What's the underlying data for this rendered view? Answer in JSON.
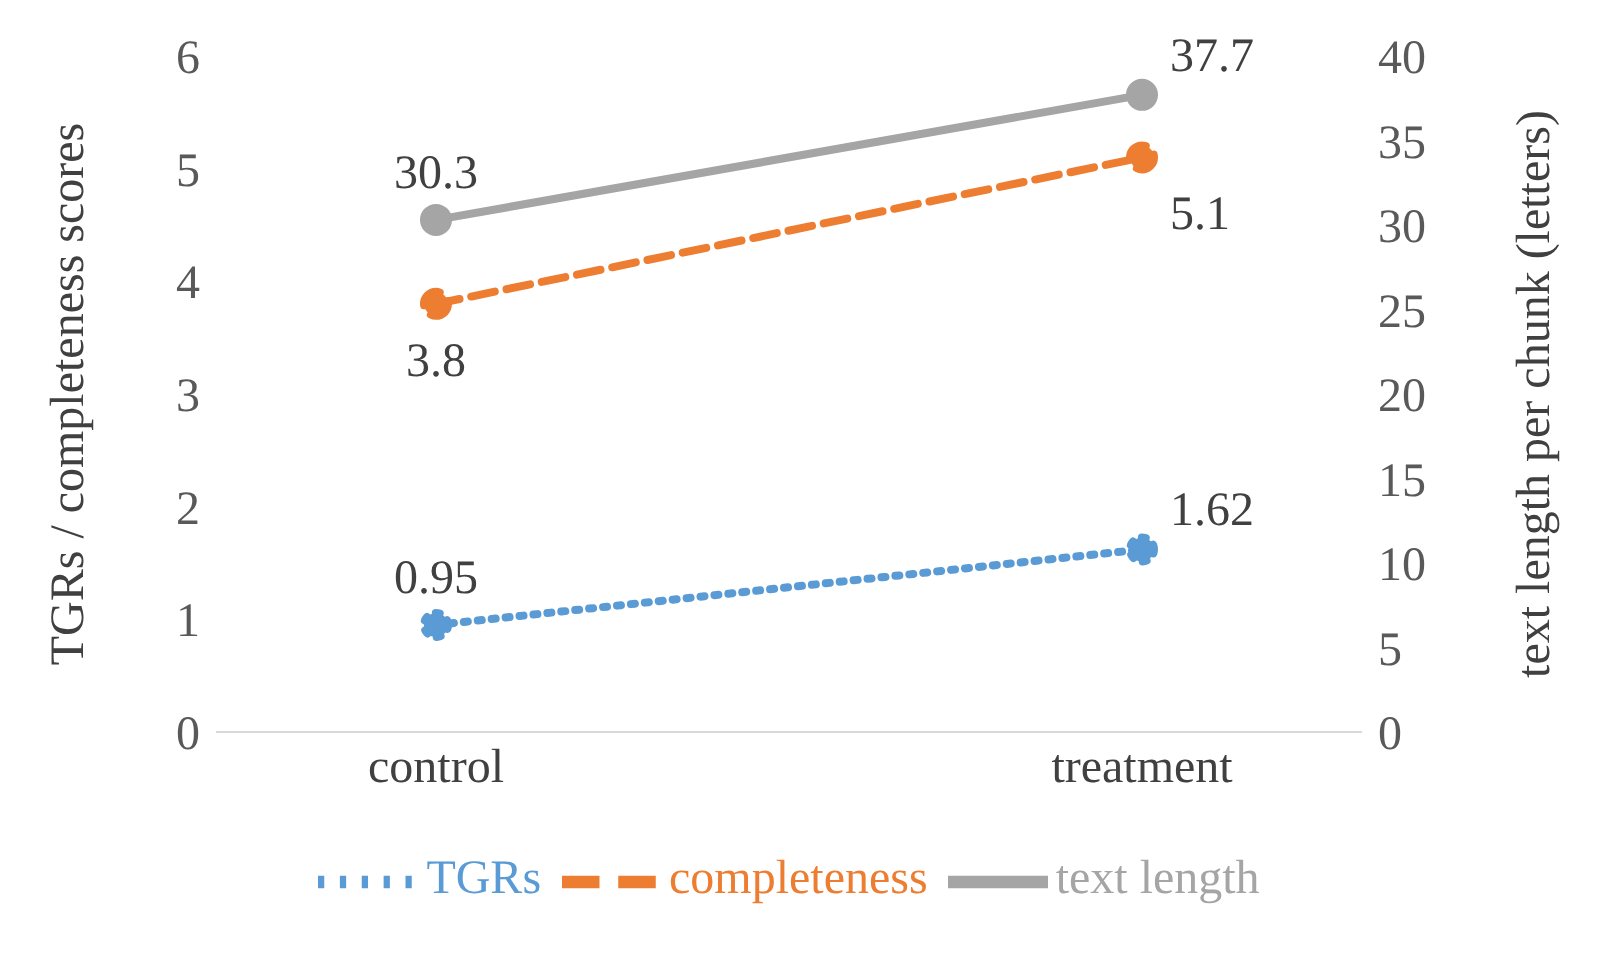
{
  "chart_data": {
    "type": "line",
    "categories": [
      "control",
      "treatment"
    ],
    "series": [
      {
        "name": "TGRs",
        "color": "#5b9bd5",
        "values": [
          0.95,
          1.62
        ],
        "line_style": "dotted",
        "axis": "y"
      },
      {
        "name": "completeness",
        "color": "#ed7d31",
        "values": [
          3.8,
          5.1
        ],
        "line_style": "dashed",
        "axis": "y"
      },
      {
        "name": "text length",
        "color": "#a5a5a5",
        "values": [
          30.3,
          37.7
        ],
        "line_style": "solid",
        "axis": "y2"
      }
    ],
    "ylabel": "TGRs / completeness scores",
    "y2label": "text length per chunk (letters)",
    "ylim": [
      0,
      6
    ],
    "yticks": [
      0,
      1,
      2,
      3,
      4,
      5,
      6
    ],
    "y2lim": [
      0,
      40
    ],
    "y2ticks": [
      0,
      5,
      10,
      15,
      20,
      25,
      30,
      35,
      40
    ],
    "data_labels": true,
    "grid": false,
    "legend": "bottom",
    "marker": "circle"
  }
}
